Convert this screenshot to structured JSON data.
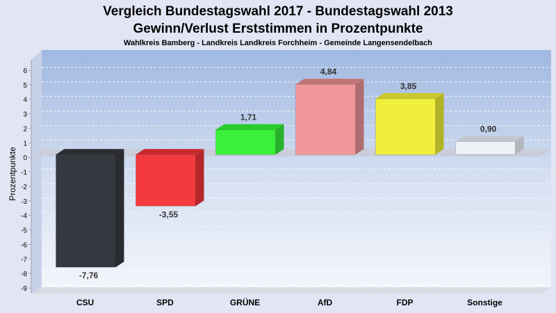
{
  "chart_data": {
    "type": "bar",
    "title": "Vergleich Bundestagswahl 2017 - Bundestagswahl 2013",
    "subtitle": "Gewinn/Verlust Erststimmen in Prozentpunkte",
    "subtitle2": "Wahlkreis Bamberg - Landkreis Landkreis Forchheim - Gemeinde Langensendelbach",
    "ylabel": "Prozentpunkte",
    "ylim": [
      -9,
      6
    ],
    "yticks": [
      "6",
      "5",
      "4",
      "3",
      "2",
      "1",
      "0",
      "-1",
      "-2",
      "-3",
      "-4",
      "-5",
      "-6",
      "-7",
      "-8",
      "-9"
    ],
    "categories": [
      "CSU",
      "SPD",
      "GRÜNE",
      "AfD",
      "FDP",
      "Sonstige"
    ],
    "values": [
      -7.76,
      -3.55,
      1.71,
      4.84,
      3.85,
      0.9
    ],
    "value_labels": [
      "-7,76",
      "-3,55",
      "1,71",
      "4,84",
      "3,85",
      "0,90"
    ],
    "colors": [
      "#35383f",
      "#f43a3e",
      "#3bf03b",
      "#f0979b",
      "#f0f03c",
      "#eef1f6"
    ],
    "side_colors": [
      "#2a2c31",
      "#b3272b",
      "#27b02a",
      "#b06d71",
      "#b3b328",
      "#b3b6bd"
    ],
    "top_colors": [
      "#292b30",
      "#c8292e",
      "#2bcc2d",
      "#c27579",
      "#c9c92d",
      "#c3c6cc"
    ],
    "grid": true,
    "legend": "none"
  }
}
